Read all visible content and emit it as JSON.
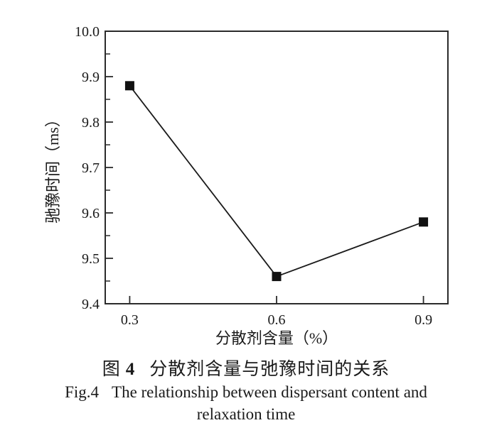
{
  "page": {
    "background": "#ffffff"
  },
  "chart_data": {
    "type": "line",
    "title": "",
    "x": [
      0.3,
      0.6,
      0.9
    ],
    "y": [
      9.88,
      9.46,
      9.58
    ],
    "xlabel": "分散剂含量（%）",
    "ylabel": "驰豫时间（ms）",
    "xlim": [
      0.25,
      0.95
    ],
    "ylim": [
      9.4,
      10.0
    ],
    "xticks": [
      0.3,
      0.6,
      0.9
    ],
    "xtick_labels": [
      "0.3",
      "0.6",
      "0.9"
    ],
    "yticks": [
      9.4,
      9.5,
      9.6,
      9.7,
      9.8,
      9.9,
      10.0
    ],
    "ytick_labels": [
      "9.4",
      "9.5",
      "9.6",
      "9.7",
      "9.8",
      "9.9",
      "10.0"
    ],
    "y_minor_ticks": [
      9.45,
      9.55,
      9.65,
      9.75,
      9.85,
      9.95
    ],
    "grid": false,
    "legend": "none",
    "frame": "box",
    "tick_direction": "in",
    "marker": "filled-square",
    "colors": {
      "line": "#1a1a1a",
      "marker": "#111111",
      "axis": "#2b2b2b",
      "text": "#1a1a1a"
    }
  },
  "caption": {
    "fig_char_cn": "图",
    "fig_num_cn": "4",
    "title_cn": "分散剂含量与弛豫时间的关系",
    "fig_label_en": "Fig.4",
    "title_en_line1": "The relationship between dispersant content and",
    "title_en_line2": "relaxation time"
  }
}
